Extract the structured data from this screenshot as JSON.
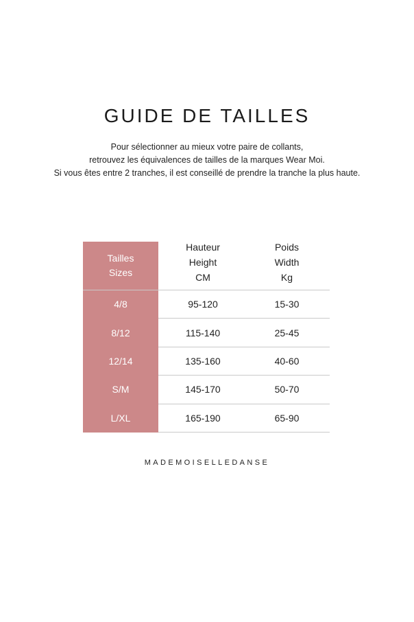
{
  "title": "GUIDE DE TAILLES",
  "intro": [
    "Pour sélectionner au mieux votre paire de collants,",
    "retrouvez les équivalences de tailles de la marques Wear Moi.",
    "Si vous êtes entre 2 tranches, il est conseillé de prendre la tranche la plus haute."
  ],
  "table": {
    "headers": [
      [
        "Tailles",
        "Sizes"
      ],
      [
        "Hauteur",
        "Height",
        "CM"
      ],
      [
        "Poids",
        "Width",
        "Kg"
      ]
    ],
    "rows": [
      [
        "4/8",
        "95-120",
        "15-30"
      ],
      [
        "8/12",
        "115-140",
        "25-45"
      ],
      [
        "12/14",
        "135-160",
        "40-60"
      ],
      [
        "S/M",
        "145-170",
        "50-70"
      ],
      [
        "L/XL",
        "165-190",
        "65-90"
      ]
    ]
  },
  "brand": "MADEMOISELLEDANSE",
  "colors": {
    "accent": "#cc8889"
  }
}
